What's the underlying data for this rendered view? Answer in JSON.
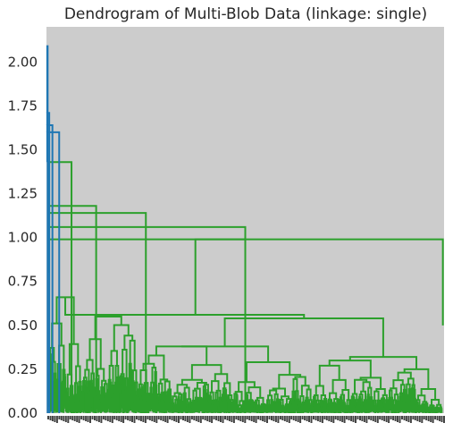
{
  "chart_data": {
    "type": "dendrogram",
    "title": "Dendrogram of Multi-Blob Data (linkage: single)",
    "xlabel": "",
    "ylabel": "",
    "ylim": [
      0,
      2.2
    ],
    "y_ticks": [
      0.0,
      0.25,
      0.5,
      0.75,
      1.0,
      1.25,
      1.5,
      1.75,
      2.0
    ],
    "y_tick_labels": [
      "0.00",
      "0.25",
      "0.50",
      "0.75",
      "1.00",
      "1.25",
      "1.50",
      "1.75",
      "2.00"
    ],
    "x_tick_labels_note": "dense overlapping leaf index labels (illegible)",
    "grid": false,
    "colors": {
      "background": "#cccccc",
      "above_threshold": "#1f77b4",
      "cluster": "#2ca02c",
      "text": "#262626"
    },
    "merge_heights": {
      "root": 2.09,
      "level_2": 1.71,
      "level_3": 1.64,
      "level_4": 1.6,
      "level_5": 1.43,
      "level_6": 1.18,
      "level_7": 1.14,
      "level_8": 1.06,
      "level_9": 0.99,
      "level_10": 0.87,
      "big_split": 0.56,
      "secondary": [
        0.66,
        0.55,
        0.54,
        0.38,
        0.32,
        0.3,
        0.29
      ]
    }
  }
}
